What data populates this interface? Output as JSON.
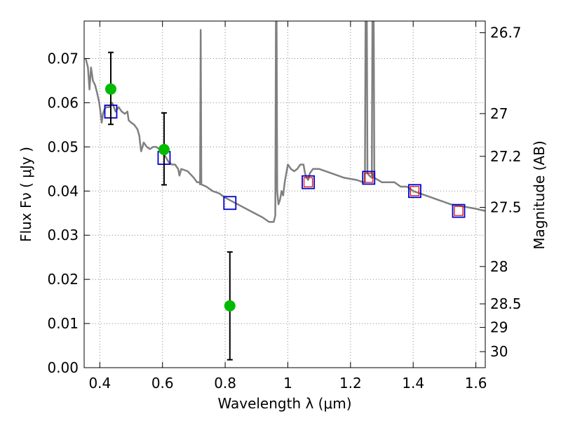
{
  "chart_data": {
    "type": "scatter",
    "xlabel": "Wavelength  λ (μm)",
    "ylabel": "Flux  Fν  ( μJy )",
    "ylabel_right": "Magnitude (AB)",
    "xlim": [
      0.35,
      1.63
    ],
    "ylim": [
      0.0,
      0.0785
    ],
    "grid": true,
    "x_ticks": [
      0.4,
      0.6,
      0.8,
      1.0,
      1.2,
      1.4,
      1.6
    ],
    "x_tick_labels": [
      "0.4",
      "0.6",
      "0.8",
      "1",
      "1.2",
      "1.4",
      "1.6"
    ],
    "y_ticks": [
      0.0,
      0.01,
      0.02,
      0.03,
      0.04,
      0.05,
      0.06,
      0.07
    ],
    "y_tick_labels": [
      "0.00",
      "0.01",
      "0.02",
      "0.03",
      "0.04",
      "0.05",
      "0.06",
      "0.07"
    ],
    "right_ticks": [
      26.7,
      27,
      27.2,
      27.5,
      28,
      28.5,
      29,
      30
    ],
    "right_tick_labels": [
      "26.7",
      "27",
      "27.2",
      "27.5",
      "28",
      "28.5",
      "29",
      "30"
    ],
    "colors": {
      "model_line": "#808080",
      "observed": "#00bb00",
      "model_box": "#0000cc",
      "model_box_inner": "#dd0000",
      "error_bar": "#000000",
      "grid": "#888888"
    },
    "series": [
      {
        "kind": "line",
        "points": [
          [
            0.355,
            0.07
          ],
          [
            0.362,
            0.068
          ],
          [
            0.367,
            0.063
          ],
          [
            0.372,
            0.068
          ],
          [
            0.378,
            0.065
          ],
          [
            0.385,
            0.064
          ],
          [
            0.392,
            0.062
          ],
          [
            0.398,
            0.06
          ],
          [
            0.402,
            0.058
          ],
          [
            0.406,
            0.0555
          ],
          [
            0.41,
            0.0575
          ],
          [
            0.415,
            0.0585
          ],
          [
            0.42,
            0.059
          ],
          [
            0.43,
            0.059
          ],
          [
            0.44,
            0.06
          ],
          [
            0.45,
            0.058
          ],
          [
            0.46,
            0.059
          ],
          [
            0.47,
            0.058
          ],
          [
            0.48,
            0.0575
          ],
          [
            0.488,
            0.058
          ],
          [
            0.492,
            0.056
          ],
          [
            0.5,
            0.0555
          ],
          [
            0.51,
            0.055
          ],
          [
            0.52,
            0.054
          ],
          [
            0.526,
            0.0525
          ],
          [
            0.53,
            0.05
          ],
          [
            0.532,
            0.049
          ],
          [
            0.54,
            0.051
          ],
          [
            0.55,
            0.05
          ],
          [
            0.56,
            0.0495
          ],
          [
            0.57,
            0.05
          ],
          [
            0.58,
            0.05
          ],
          [
            0.6,
            0.049
          ],
          [
            0.62,
            0.0465
          ],
          [
            0.63,
            0.046
          ],
          [
            0.64,
            0.046
          ],
          [
            0.65,
            0.045
          ],
          [
            0.654,
            0.0435
          ],
          [
            0.66,
            0.045
          ],
          [
            0.68,
            0.0445
          ],
          [
            0.7,
            0.043
          ],
          [
            0.71,
            0.042
          ],
          [
            0.718,
            0.042
          ],
          [
            0.72,
            0.0415
          ],
          [
            0.722,
            0.0765
          ],
          [
            0.724,
            0.0415
          ],
          [
            0.74,
            0.041
          ],
          [
            0.76,
            0.04
          ],
          [
            0.78,
            0.0395
          ],
          [
            0.8,
            0.0385
          ],
          [
            0.84,
            0.037
          ],
          [
            0.88,
            0.0355
          ],
          [
            0.92,
            0.034
          ],
          [
            0.94,
            0.033
          ],
          [
            0.955,
            0.033
          ],
          [
            0.96,
            0.0345
          ],
          [
            0.962,
            0.079
          ],
          [
            0.964,
            0.079
          ],
          [
            0.966,
            0.04
          ],
          [
            0.97,
            0.037
          ],
          [
            0.975,
            0.038
          ],
          [
            0.98,
            0.04
          ],
          [
            0.985,
            0.039
          ],
          [
            0.99,
            0.042
          ],
          [
            1.0,
            0.046
          ],
          [
            1.01,
            0.045
          ],
          [
            1.02,
            0.0445
          ],
          [
            1.03,
            0.045
          ],
          [
            1.04,
            0.046
          ],
          [
            1.05,
            0.046
          ],
          [
            1.055,
            0.044
          ],
          [
            1.06,
            0.043
          ],
          [
            1.065,
            0.0425
          ],
          [
            1.07,
            0.044
          ],
          [
            1.08,
            0.045
          ],
          [
            1.1,
            0.045
          ],
          [
            1.14,
            0.044
          ],
          [
            1.18,
            0.043
          ],
          [
            1.22,
            0.0425
          ],
          [
            1.24,
            0.042
          ],
          [
            1.246,
            0.042
          ],
          [
            1.248,
            0.079
          ],
          [
            1.252,
            0.079
          ],
          [
            1.254,
            0.044
          ],
          [
            1.26,
            0.0435
          ],
          [
            1.268,
            0.043
          ],
          [
            1.27,
            0.079
          ],
          [
            1.274,
            0.079
          ],
          [
            1.276,
            0.043
          ],
          [
            1.3,
            0.042
          ],
          [
            1.34,
            0.042
          ],
          [
            1.36,
            0.041
          ],
          [
            1.38,
            0.041
          ],
          [
            1.4,
            0.04
          ],
          [
            1.42,
            0.0395
          ],
          [
            1.44,
            0.039
          ],
          [
            1.46,
            0.0385
          ],
          [
            1.48,
            0.038
          ],
          [
            1.5,
            0.0375
          ],
          [
            1.52,
            0.037
          ],
          [
            1.56,
            0.0365
          ],
          [
            1.6,
            0.036
          ],
          [
            1.63,
            0.0355
          ]
        ]
      },
      {
        "kind": "points",
        "x": [
          0.435,
          0.605,
          0.815
        ],
        "y": [
          0.0631,
          0.0494,
          0.014
        ],
        "yerr_low": [
          0.008,
          0.008,
          0.0122
        ],
        "yerr_high": [
          0.0083,
          0.0083,
          0.0122
        ]
      },
      {
        "kind": "boxes",
        "x": [
          0.435,
          0.605,
          0.815,
          1.065,
          1.258,
          1.405,
          1.545
        ],
        "y": [
          0.058,
          0.0475,
          0.0373,
          0.042,
          0.043,
          0.04,
          0.0355
        ],
        "inner": [
          false,
          false,
          false,
          true,
          true,
          true,
          true
        ]
      }
    ]
  }
}
